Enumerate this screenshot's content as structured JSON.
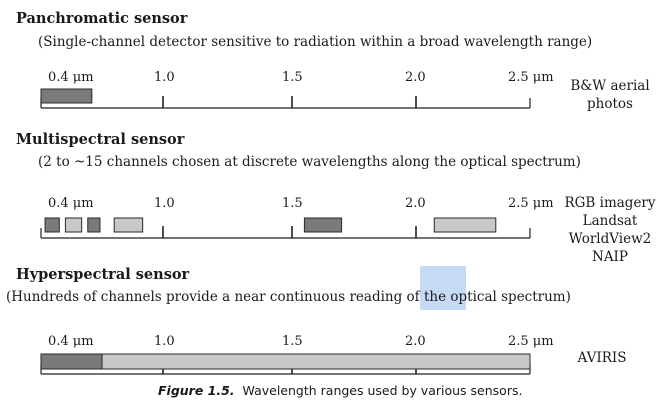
{
  "panchromatic": {
    "heading": "Panchromatic sensor",
    "description": "(Single-channel detector sensitive to radiation within a broad wavelength range)",
    "side_lines": [
      "B&W aerial",
      "photos"
    ]
  },
  "multispectral": {
    "heading": "Multispectral sensor",
    "description": "(2 to ~15 channels chosen at discrete wavelengths along the optical spectrum)",
    "side_lines": [
      "RGB imagery",
      "Landsat",
      "WorldView2",
      "NAIP"
    ]
  },
  "hyperspectral": {
    "heading": "Hyperspectral sensor",
    "description_before": "(Hundreds of channels provide a near continuous reading of the ",
    "description_highlight": "optical",
    "description_after": " spectrum)",
    "side_lines": [
      "AVIRIS"
    ]
  },
  "axis": {
    "min_um": 0.4,
    "max_um": 2.5,
    "ticks": [
      {
        "value": 0.4,
        "label": "0.4 μm"
      },
      {
        "value": 1.0,
        "label": "1.0"
      },
      {
        "value": 1.5,
        "label": "1.5"
      },
      {
        "value": 2.0,
        "label": "2.0"
      },
      {
        "value": 2.5,
        "label": "2.5 μm"
      }
    ]
  },
  "bands": {
    "panchromatic": [
      {
        "start_um": 0.4,
        "end_um": 0.65,
        "shade": "dark"
      }
    ],
    "multispectral": [
      {
        "start_um": 0.42,
        "end_um": 0.49,
        "shade": "dark"
      },
      {
        "start_um": 0.52,
        "end_um": 0.6,
        "shade": "light"
      },
      {
        "start_um": 0.63,
        "end_um": 0.69,
        "shade": "dark"
      },
      {
        "start_um": 0.76,
        "end_um": 0.9,
        "shade": "light"
      },
      {
        "start_um": 1.55,
        "end_um": 1.7,
        "shade": "dark"
      },
      {
        "start_um": 2.08,
        "end_um": 2.35,
        "shade": "light"
      }
    ],
    "hyperspectral": [
      {
        "start_um": 0.4,
        "end_um": 0.7,
        "shade": "dark"
      },
      {
        "start_um": 0.7,
        "end_um": 2.5,
        "shade": "light"
      }
    ]
  },
  "colors": {
    "dark_band": "#7a7a7a",
    "light_band": "#c8c8c8",
    "band_stroke": "#2a2a2a",
    "axis": "#222222",
    "highlight": "#bcd3f3"
  },
  "caption": {
    "figure_label": "Figure 1.5.",
    "text": "Wavelength ranges used by various sensors."
  }
}
